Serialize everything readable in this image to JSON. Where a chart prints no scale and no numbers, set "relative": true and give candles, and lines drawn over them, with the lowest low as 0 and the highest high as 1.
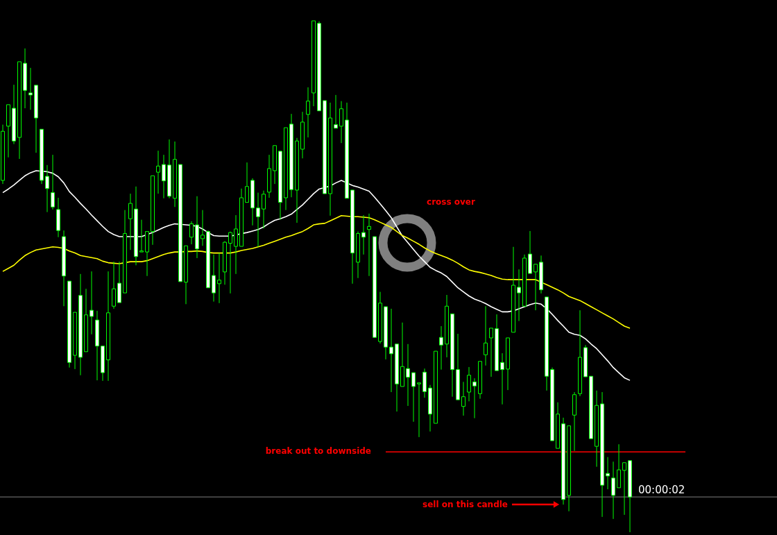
{
  "chart_data": {
    "type": "candlestick",
    "relative": true,
    "categories": [
      null,
      null,
      null,
      null,
      null,
      null,
      null,
      null,
      null,
      null,
      null,
      null,
      null,
      null,
      null,
      null,
      null,
      null,
      null,
      null,
      null,
      null,
      null,
      null,
      null,
      null,
      null,
      null,
      null,
      null,
      null,
      null,
      null,
      null,
      null,
      null,
      null,
      null,
      null,
      null,
      null,
      null,
      null,
      null,
      null,
      null,
      null,
      null,
      null,
      null,
      null,
      null,
      null,
      null,
      null,
      null,
      null,
      null,
      null,
      null,
      null,
      null,
      null,
      null,
      null,
      null,
      null,
      null,
      null,
      null,
      null,
      null,
      null,
      null,
      null,
      null,
      null,
      null,
      null,
      null,
      null,
      null,
      null,
      null,
      null,
      null,
      null,
      null,
      null,
      null,
      null,
      null,
      null,
      null,
      null,
      null,
      null,
      null,
      null,
      null,
      null,
      null,
      null,
      null,
      null,
      null,
      null,
      null,
      null,
      null,
      null,
      null,
      null,
      null,
      null,
      null,
      null,
      null,
      null,
      null,
      null,
      null,
      null,
      null,
      null,
      null,
      null,
      null,
      null,
      null,
      null,
      null,
      null,
      null,
      null,
      null,
      null,
      null,
      null,
      null
    ],
    "series": [
      {
        "color": "#00ff00",
        "ohlc": [
          [
            0.688,
            0.797,
            0.681,
            0.784
          ],
          [
            0.794,
            0.836,
            0.733,
            0.836
          ],
          [
            0.829,
            0.875,
            0.759,
            0.765
          ],
          [
            0.772,
            0.92,
            0.73,
            0.92
          ],
          [
            0.917,
            0.946,
            0.829,
            0.864
          ],
          [
            0.859,
            0.908,
            0.826,
            0.855
          ],
          [
            0.874,
            0.874,
            0.742,
            0.81
          ],
          [
            0.788,
            0.788,
            0.681,
            0.688
          ],
          [
            0.696,
            0.718,
            0.626,
            0.672
          ],
          [
            0.664,
            0.738,
            0.631,
            0.636
          ],
          [
            0.631,
            0.654,
            0.577,
            0.59
          ],
          [
            0.578,
            0.59,
            0.442,
            0.501
          ],
          [
            0.491,
            0.491,
            0.322,
            0.332
          ],
          [
            0.346,
            0.43,
            0.319,
            0.43
          ],
          [
            0.463,
            0.505,
            0.307,
            0.342
          ],
          [
            0.353,
            0.476,
            0.353,
            0.425
          ],
          [
            0.434,
            0.51,
            0.387,
            0.422
          ],
          [
            0.415,
            0.433,
            0.297,
            0.364
          ],
          [
            0.364,
            0.364,
            0.296,
            0.312
          ],
          [
            0.337,
            0.51,
            0.296,
            0.429
          ],
          [
            0.442,
            0.529,
            0.437,
            0.476
          ],
          [
            0.487,
            0.529,
            0.449,
            0.449
          ],
          [
            0.468,
            0.63,
            0.468,
            0.584
          ],
          [
            0.613,
            0.662,
            0.552,
            0.643
          ],
          [
            0.632,
            0.676,
            0.522,
            0.539
          ],
          [
            0.548,
            0.611,
            0.548,
            0.55
          ],
          [
            0.548,
            0.588,
            0.501,
            0.588
          ],
          [
            0.588,
            0.697,
            0.562,
            0.697
          ],
          [
            0.704,
            0.746,
            0.662,
            0.716
          ],
          [
            0.719,
            0.738,
            0.653,
            0.687
          ],
          [
            0.718,
            0.768,
            0.653,
            0.657
          ],
          [
            0.653,
            0.764,
            0.636,
            0.729
          ],
          [
            0.719,
            0.719,
            0.49,
            0.49
          ],
          [
            0.489,
            0.56,
            0.446,
            0.56
          ],
          [
            0.577,
            0.608,
            0.563,
            0.603
          ],
          [
            0.601,
            0.657,
            0.536,
            0.554
          ],
          [
            0.574,
            0.63,
            0.56,
            0.581
          ],
          [
            0.588,
            0.59,
            0.478,
            0.478
          ],
          [
            0.502,
            0.543,
            0.451,
            0.468
          ],
          [
            0.486,
            0.546,
            0.448,
            0.493
          ],
          [
            0.509,
            0.569,
            0.484,
            0.567
          ],
          [
            0.565,
            0.588,
            0.467,
            0.586
          ],
          [
            0.559,
            0.62,
            0.505,
            0.593
          ],
          [
            0.559,
            0.672,
            0.559,
            0.654
          ],
          [
            0.645,
            0.723,
            0.645,
            0.676
          ],
          [
            0.688,
            0.692,
            0.6,
            0.634
          ],
          [
            0.634,
            0.664,
            0.558,
            0.617
          ],
          [
            0.632,
            0.668,
            0.594,
            0.661
          ],
          [
            0.665,
            0.738,
            0.654,
            0.711
          ],
          [
            0.707,
            0.756,
            0.681,
            0.756
          ],
          [
            0.745,
            0.745,
            0.611,
            0.645
          ],
          [
            0.654,
            0.791,
            0.63,
            0.791
          ],
          [
            0.798,
            0.818,
            0.655,
            0.67
          ],
          [
            0.669,
            0.771,
            0.605,
            0.765
          ],
          [
            0.749,
            0.822,
            0.731,
            0.802
          ],
          [
            0.817,
            0.87,
            0.772,
            0.843
          ],
          [
            0.859,
            1.0,
            0.833,
            1.0
          ],
          [
            0.995,
            0.999,
            0.824,
            0.824
          ],
          [
            0.844,
            0.844,
            0.662,
            0.662
          ],
          [
            0.662,
            0.84,
            0.619,
            0.81
          ],
          [
            0.797,
            0.855,
            0.79,
            0.79
          ],
          [
            0.794,
            0.843,
            0.761,
            0.828
          ],
          [
            0.806,
            0.84,
            0.653,
            0.653
          ],
          [
            0.669,
            0.669,
            0.486,
            0.546
          ],
          [
            0.528,
            0.588,
            0.497,
            0.584
          ],
          [
            0.586,
            0.62,
            0.543,
            0.577
          ],
          [
            0.592,
            0.623,
            0.501,
            0.598
          ],
          [
            0.578,
            0.578,
            0.38,
            0.381
          ],
          [
            0.373,
            0.47,
            0.369,
            0.448
          ],
          [
            0.441,
            0.441,
            0.338,
            0.362
          ],
          [
            0.362,
            0.437,
            0.274,
            0.349
          ],
          [
            0.368,
            0.368,
            0.236,
            0.29
          ],
          [
            0.285,
            0.41,
            0.285,
            0.324
          ],
          [
            0.32,
            0.368,
            0.247,
            0.303
          ],
          [
            0.312,
            0.312,
            0.216,
            0.285
          ],
          [
            0.29,
            0.292,
            0.186,
            0.292
          ],
          [
            0.313,
            0.32,
            0.263,
            0.275
          ],
          [
            0.282,
            0.288,
            0.197,
            0.231
          ],
          [
            0.213,
            0.354,
            0.213,
            0.354
          ],
          [
            0.381,
            0.403,
            0.318,
            0.366
          ],
          [
            0.368,
            0.464,
            0.342,
            0.442
          ],
          [
            0.427,
            0.427,
            0.265,
            0.318
          ],
          [
            0.318,
            0.388,
            0.259,
            0.259
          ],
          [
            0.246,
            0.294,
            0.228,
            0.265
          ],
          [
            0.274,
            0.323,
            0.256,
            0.307
          ],
          [
            0.294,
            0.301,
            0.223,
            0.286
          ],
          [
            0.271,
            0.334,
            0.261,
            0.334
          ],
          [
            0.347,
            0.442,
            0.326,
            0.37
          ],
          [
            0.38,
            0.399,
            0.304,
            0.399
          ],
          [
            0.398,
            0.426,
            0.316,
            0.316
          ],
          [
            0.332,
            0.35,
            0.25,
            0.318
          ],
          [
            0.319,
            0.38,
            0.278,
            0.38
          ],
          [
            0.391,
            0.558,
            0.391,
            0.483
          ],
          [
            0.479,
            0.514,
            0.413,
            0.468
          ],
          [
            0.442,
            0.543,
            0.442,
            0.536
          ],
          [
            0.544,
            0.589,
            0.506,
            0.506
          ],
          [
            0.509,
            0.524,
            0.434,
            0.524
          ],
          [
            0.528,
            0.541,
            0.467,
            0.474
          ],
          [
            0.46,
            0.46,
            0.277,
            0.305
          ],
          [
            0.318,
            0.322,
            0.179,
            0.179
          ],
          [
            0.164,
            0.254,
            0.164,
            0.231
          ],
          [
            0.212,
            0.224,
            0.054,
            0.064
          ],
          [
            0.072,
            0.208,
            0.041,
            0.208
          ],
          [
            0.229,
            0.274,
            0.159,
            0.269
          ],
          [
            0.271,
            0.434,
            0.266,
            0.342
          ],
          [
            0.361,
            0.366,
            0.304,
            0.304
          ],
          [
            0.305,
            0.305,
            0.183,
            0.183
          ],
          [
            0.168,
            0.277,
            0.128,
            0.248
          ],
          [
            0.251,
            0.274,
            0.03,
            0.092
          ],
          [
            0.115,
            0.147,
            0.084,
            0.11
          ],
          [
            0.106,
            0.138,
            0.026,
            0.072
          ],
          [
            0.087,
            0.172,
            0.087,
            0.122
          ],
          [
            0.121,
            0.136,
            0.034,
            0.136
          ],
          [
            0.14,
            0.14,
            0.0,
            0.069
          ],
          null,
          null,
          null,
          null,
          null,
          null,
          null,
          null,
          null,
          null,
          null,
          null,
          null,
          null,
          null,
          null,
          null,
          null,
          null,
          null,
          null,
          null,
          null,
          null,
          null,
          null
        ]
      },
      {
        "type": "line",
        "color": "#ffffff",
        "values": [
          0.664,
          0.671,
          0.679,
          0.688,
          0.697,
          0.703,
          0.707,
          0.706,
          0.705,
          0.702,
          0.695,
          0.683,
          0.666,
          0.655,
          0.643,
          0.632,
          0.62,
          0.609,
          0.598,
          0.588,
          0.582,
          0.578,
          0.578,
          0.578,
          0.578,
          0.578,
          0.582,
          0.586,
          0.591,
          0.596,
          0.6,
          0.603,
          0.602,
          0.601,
          0.6,
          0.598,
          0.593,
          0.586,
          0.58,
          0.579,
          0.579,
          0.579,
          0.581,
          0.584,
          0.586,
          0.589,
          0.592,
          0.597,
          0.604,
          0.61,
          0.613,
          0.617,
          0.622,
          0.631,
          0.64,
          0.651,
          0.662,
          0.671,
          0.674,
          0.677,
          0.683,
          0.688,
          0.683,
          0.678,
          0.675,
          0.671,
          0.667,
          0.655,
          0.642,
          0.629,
          0.615,
          0.597,
          0.579,
          0.566,
          0.553,
          0.54,
          0.529,
          0.518,
          0.512,
          0.507,
          0.5,
          0.489,
          0.478,
          0.47,
          0.462,
          0.456,
          0.452,
          0.447,
          0.441,
          0.436,
          0.431,
          0.431,
          0.433,
          0.437,
          0.441,
          0.445,
          0.448,
          0.446,
          0.437,
          0.426,
          0.414,
          0.403,
          0.391,
          0.387,
          0.385,
          0.378,
          0.368,
          0.359,
          0.347,
          0.335,
          0.322,
          0.312,
          0.302,
          0.297,
          null,
          null,
          null,
          null,
          null,
          null,
          null,
          null,
          null,
          null,
          null,
          null,
          null,
          null,
          null,
          null,
          null,
          null,
          null,
          null,
          null,
          null,
          null,
          null,
          null,
          null
        ]
      },
      {
        "type": "line",
        "color": "#ffff00",
        "values": [
          0.51,
          0.516,
          0.522,
          0.532,
          0.541,
          0.547,
          0.552,
          0.554,
          0.556,
          0.558,
          0.557,
          0.555,
          0.55,
          0.546,
          0.541,
          0.539,
          0.537,
          0.535,
          0.53,
          0.527,
          0.526,
          0.525,
          0.527,
          0.529,
          0.529,
          0.529,
          0.531,
          0.535,
          0.539,
          0.543,
          0.546,
          0.548,
          0.548,
          0.549,
          0.549,
          0.55,
          0.549,
          0.547,
          0.546,
          0.546,
          0.546,
          0.546,
          0.548,
          0.551,
          0.553,
          0.555,
          0.558,
          0.561,
          0.565,
          0.569,
          0.573,
          0.577,
          0.58,
          0.584,
          0.588,
          0.594,
          0.601,
          0.603,
          0.604,
          0.609,
          0.614,
          0.619,
          0.618,
          0.617,
          0.617,
          0.616,
          0.615,
          0.611,
          0.606,
          0.601,
          0.596,
          0.588,
          0.58,
          0.575,
          0.569,
          0.563,
          0.556,
          0.55,
          0.545,
          0.541,
          0.537,
          0.532,
          0.526,
          0.519,
          0.513,
          0.51,
          0.508,
          0.505,
          0.502,
          0.498,
          0.495,
          0.494,
          0.494,
          0.494,
          0.494,
          0.494,
          0.494,
          0.489,
          0.484,
          0.479,
          0.474,
          0.468,
          0.461,
          0.457,
          0.453,
          0.447,
          0.441,
          0.435,
          0.429,
          0.423,
          0.417,
          0.41,
          0.403,
          0.399,
          null,
          null,
          null,
          null,
          null,
          null,
          null,
          null,
          null,
          null,
          null,
          null,
          null,
          null,
          null,
          null,
          null,
          null,
          null,
          null,
          null,
          null,
          null,
          null,
          null,
          null
        ]
      },
      {
        "type": "line",
        "color": "#ff0000",
        "values": [
          null,
          null,
          null,
          null,
          null,
          null,
          null,
          null,
          null,
          null,
          null,
          null,
          null,
          null,
          null,
          null,
          null,
          null,
          null,
          null,
          null,
          null,
          null,
          null,
          null,
          null,
          null,
          null,
          null,
          null,
          null,
          null,
          null,
          null,
          null,
          null,
          null,
          null,
          null,
          null,
          null,
          null,
          null,
          null,
          null,
          null,
          null,
          null,
          null,
          null,
          null,
          null,
          null,
          null,
          null,
          null,
          null,
          null,
          null,
          null,
          null,
          null,
          null,
          null,
          null,
          null,
          null,
          null,
          null,
          0.157,
          0.157,
          0.157,
          0.157,
          0.157,
          0.157,
          0.157,
          0.157,
          0.157,
          0.157,
          0.157,
          0.157,
          0.157,
          0.157,
          0.157,
          0.157,
          0.157,
          0.157,
          0.157,
          0.157,
          0.157,
          0.157,
          0.157,
          0.157,
          0.157,
          0.157,
          0.157,
          0.157,
          0.157,
          0.157,
          0.157,
          0.157,
          0.157,
          0.157,
          0.157,
          0.157,
          0.157,
          0.157,
          0.157,
          0.157,
          0.157,
          0.157,
          0.157,
          0.157,
          0.157,
          0.157,
          0.157,
          0.157,
          0.157,
          0.157,
          0.157,
          0.157,
          0.157,
          0.157,
          0.157,
          null,
          null,
          null,
          null,
          null,
          null,
          null,
          null,
          null,
          null,
          null,
          null,
          null,
          null,
          null,
          null
        ]
      }
    ],
    "ref_lines": [
      {
        "axis": "y",
        "value": 0.069,
        "label": "00:00:02",
        "color": "#808080"
      }
    ],
    "annotations": [
      "cross over",
      "break out to downside",
      "sell on this candle"
    ]
  }
}
